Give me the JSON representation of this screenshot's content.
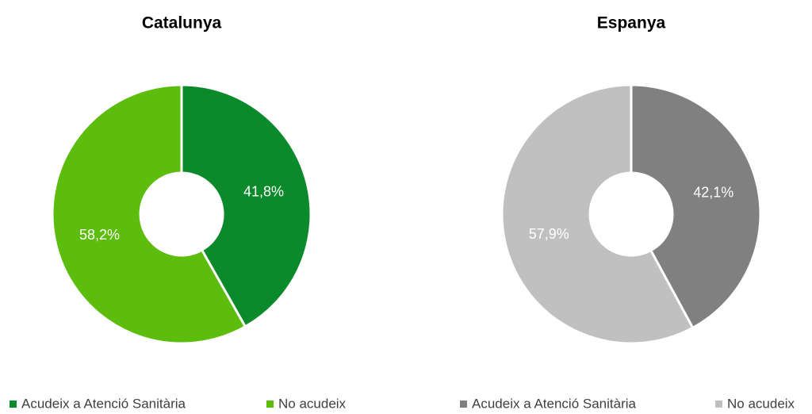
{
  "chart_data": [
    {
      "type": "donut",
      "title": "Catalunya",
      "categories": [
        "Acudeix a Atenció Sanitària",
        "No acudeix"
      ],
      "values": [
        41.8,
        58.2
      ],
      "value_labels": [
        "41,8%",
        "58,2%"
      ],
      "colors": [
        "#0a8a2b",
        "#5cbd0c"
      ]
    },
    {
      "type": "donut",
      "title": "Espanya",
      "categories": [
        "Acudeix a Atenció Sanitària",
        "No acudeix"
      ],
      "values": [
        42.1,
        57.9
      ],
      "value_labels": [
        "42,1%",
        "57,9%"
      ],
      "colors": [
        "#808080",
        "#c0c0c0"
      ]
    }
  ]
}
